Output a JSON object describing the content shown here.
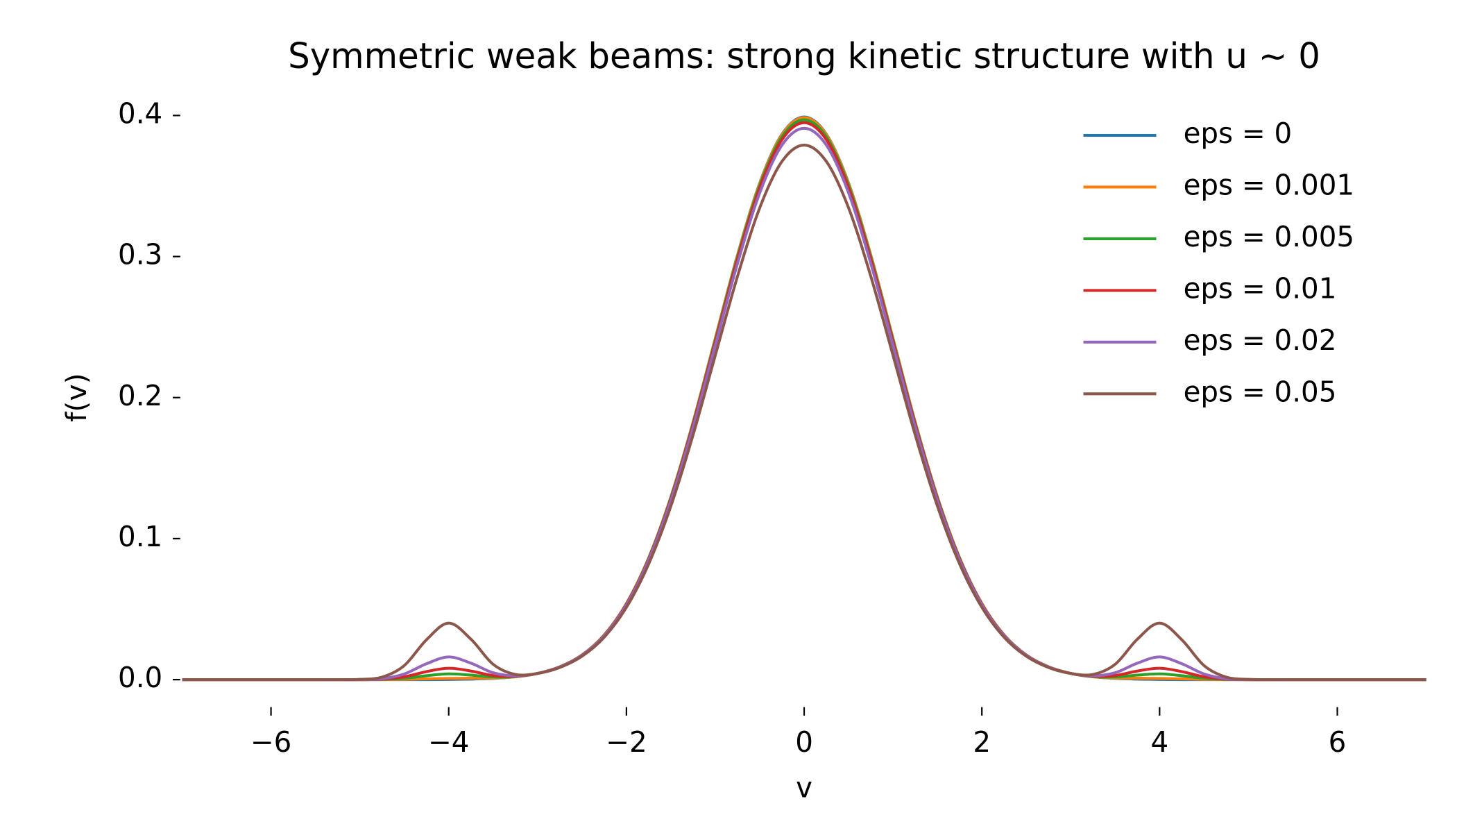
{
  "chart_data": {
    "type": "line",
    "title": "Symmetric weak beams: strong kinetic structure with u ~ 0",
    "x_label": "v",
    "y_label": "f(v)",
    "x": [
      -7,
      -6.75,
      -6.5,
      -6.25,
      -6,
      -5.75,
      -5.5,
      -5.25,
      -5,
      -4.75,
      -4.5,
      -4.25,
      -4,
      -3.75,
      -3.5,
      -3.25,
      -3,
      -2.75,
      -2.5,
      -2.25,
      -2,
      -1.75,
      -1.5,
      -1.25,
      -1,
      -0.75,
      -0.5,
      -0.25,
      0,
      0.25,
      0.5,
      0.75,
      1,
      1.25,
      1.5,
      1.75,
      2,
      2.25,
      2.5,
      2.75,
      3,
      3.25,
      3.5,
      3.75,
      4,
      4.25,
      4.5,
      4.75,
      5,
      5.25,
      5.5,
      5.75,
      6,
      6.25,
      6.5,
      6.75,
      7
    ],
    "series": [
      {
        "name": "eps = 0",
        "color": "#1f77b4",
        "values": [
          0,
          0,
          0,
          0,
          0,
          0,
          0,
          0,
          0,
          0,
          0,
          0,
          0.0001,
          0.0004,
          0.0009,
          0.002,
          0.0044,
          0.0091,
          0.0175,
          0.0317,
          0.054,
          0.0863,
          0.1295,
          0.1826,
          0.242,
          0.3011,
          0.3521,
          0.3867,
          0.3989,
          0.3867,
          0.3521,
          0.3011,
          0.242,
          0.1826,
          0.1295,
          0.0863,
          0.054,
          0.0317,
          0.0175,
          0.0091,
          0.0044,
          0.002,
          0.0009,
          0.0004,
          0.0001,
          0,
          0,
          0,
          0,
          0,
          0,
          0,
          0,
          0,
          0,
          0,
          0
        ]
      },
      {
        "name": "eps = 0.001",
        "color": "#ff7f0e",
        "values": [
          0,
          0,
          0,
          0,
          0,
          0,
          0,
          0,
          0,
          0,
          0.0002,
          0.0006,
          0.0009,
          0.001,
          0.0011,
          0.002,
          0.0044,
          0.0091,
          0.0175,
          0.0317,
          0.054,
          0.0862,
          0.1294,
          0.1824,
          0.2418,
          0.3008,
          0.3517,
          0.3863,
          0.3985,
          0.3863,
          0.3517,
          0.3008,
          0.2418,
          0.1824,
          0.1294,
          0.0862,
          0.054,
          0.0317,
          0.0175,
          0.0091,
          0.0044,
          0.002,
          0.0011,
          0.001,
          0.0009,
          0.0006,
          0.0002,
          0,
          0,
          0,
          0,
          0,
          0,
          0,
          0,
          0,
          0
        ]
      },
      {
        "name": "eps = 0.005",
        "color": "#2ca02c",
        "values": [
          0,
          0,
          0,
          0,
          0,
          0,
          0,
          0,
          0,
          0.0002,
          0.001,
          0.0028,
          0.0041,
          0.0032,
          0.0019,
          0.0022,
          0.0044,
          0.0091,
          0.0174,
          0.0315,
          0.0537,
          0.0859,
          0.1289,
          0.1817,
          0.2408,
          0.2996,
          0.3503,
          0.3848,
          0.3969,
          0.3848,
          0.3503,
          0.2996,
          0.2408,
          0.1817,
          0.1289,
          0.0859,
          0.0537,
          0.0315,
          0.0174,
          0.0091,
          0.0044,
          0.0022,
          0.0019,
          0.0032,
          0.0041,
          0.0028,
          0.001,
          0.0002,
          0,
          0,
          0,
          0,
          0,
          0,
          0,
          0,
          0
        ]
      },
      {
        "name": "eps = 0.01",
        "color": "#d62728",
        "values": [
          0,
          0,
          0,
          0,
          0,
          0,
          0,
          0,
          0,
          0.0004,
          0.002,
          0.0057,
          0.0081,
          0.0061,
          0.0029,
          0.0024,
          0.0044,
          0.009,
          0.0173,
          0.0314,
          0.0535,
          0.0854,
          0.1282,
          0.1808,
          0.2396,
          0.2981,
          0.3486,
          0.3828,
          0.3949,
          0.3828,
          0.3486,
          0.2981,
          0.2396,
          0.1808,
          0.1282,
          0.0854,
          0.0535,
          0.0314,
          0.0173,
          0.009,
          0.0044,
          0.0024,
          0.0029,
          0.0061,
          0.0081,
          0.0057,
          0.002,
          0.0004,
          0,
          0,
          0,
          0,
          0,
          0,
          0,
          0,
          0
        ]
      },
      {
        "name": "eps = 0.02",
        "color": "#9467bd",
        "values": [
          0,
          0,
          0,
          0,
          0,
          0,
          0,
          0,
          0.0001,
          0.0007,
          0.004,
          0.0113,
          0.0161,
          0.0117,
          0.0049,
          0.0027,
          0.0044,
          0.0089,
          0.0172,
          0.0311,
          0.0529,
          0.0846,
          0.1269,
          0.1789,
          0.2372,
          0.2951,
          0.3451,
          0.379,
          0.3909,
          0.379,
          0.3451,
          0.2951,
          0.2372,
          0.1789,
          0.1269,
          0.0846,
          0.0529,
          0.0311,
          0.0172,
          0.0089,
          0.0044,
          0.0027,
          0.0049,
          0.0117,
          0.0161,
          0.0113,
          0.004,
          0.0007,
          0.0001,
          0,
          0,
          0,
          0,
          0,
          0,
          0,
          0
        ]
      },
      {
        "name": "eps = 0.05",
        "color": "#8c564b",
        "values": [
          0,
          0,
          0,
          0,
          0,
          0,
          0,
          0,
          0.0002,
          0.0018,
          0.01,
          0.0283,
          0.0401,
          0.0287,
          0.0109,
          0.0037,
          0.0044,
          0.0086,
          0.0166,
          0.0301,
          0.0513,
          0.082,
          0.123,
          0.1735,
          0.2299,
          0.286,
          0.3345,
          0.3674,
          0.379,
          0.3674,
          0.3345,
          0.286,
          0.2299,
          0.1735,
          0.123,
          0.082,
          0.0513,
          0.0301,
          0.0166,
          0.0086,
          0.0044,
          0.0037,
          0.0109,
          0.0287,
          0.0401,
          0.0283,
          0.01,
          0.0018,
          0.0002,
          0,
          0,
          0,
          0,
          0,
          0,
          0,
          0
        ]
      }
    ],
    "xlim": [
      -7,
      7
    ],
    "ylim": [
      0,
      0.4
    ],
    "xticks": [
      {
        "value": -6,
        "label": "−6"
      },
      {
        "value": -4,
        "label": "−4"
      },
      {
        "value": -2,
        "label": "−2"
      },
      0,
      2,
      4,
      6
    ],
    "yticks": [
      {
        "value": 0,
        "label": "0.0"
      },
      0.1,
      0.2,
      0.3,
      0.4
    ],
    "grid": false,
    "legend": "upper right"
  }
}
